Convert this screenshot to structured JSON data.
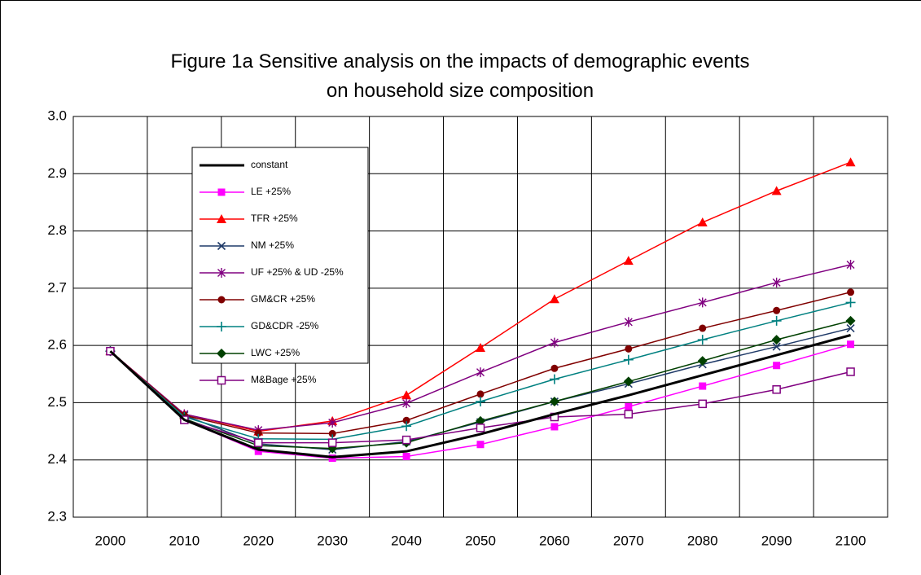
{
  "chart_data": {
    "type": "line",
    "title": "Figure 1a Sensitive analysis on the impacts of demographic events on household size composition",
    "categories": [
      "2000",
      "2010",
      "2020",
      "2030",
      "2040",
      "2050",
      "2060",
      "2070",
      "2080",
      "2090",
      "2100"
    ],
    "ylim": [
      2.3,
      3.0
    ],
    "yticks": [
      2.3,
      2.4,
      2.5,
      2.6,
      2.7,
      2.8,
      2.9,
      {
        "value": 3,
        "label": "3.0"
      }
    ],
    "grid": true,
    "legend": "upper-left",
    "series": [
      {
        "name": "constant",
        "color": "#000000",
        "marker": "none",
        "values": [
          2.59,
          2.47,
          2.418,
          2.405,
          2.415,
          2.445,
          2.48,
          2.513,
          2.548,
          2.583,
          2.618
        ]
      },
      {
        "name": "LE +25%",
        "color": "#ff00ff",
        "marker": "square",
        "values": [
          2.59,
          2.47,
          2.415,
          2.403,
          2.406,
          2.427,
          2.458,
          2.493,
          2.529,
          2.565,
          2.602
        ]
      },
      {
        "name": "TFR +25%",
        "color": "#ff0000",
        "marker": "triangle",
        "values": [
          2.59,
          2.48,
          2.45,
          2.468,
          2.513,
          2.596,
          2.681,
          2.748,
          2.815,
          2.87,
          2.92
        ]
      },
      {
        "name": "NM +25%",
        "color": "#1f3a68",
        "marker": "x",
        "values": [
          2.59,
          2.478,
          2.428,
          2.418,
          2.432,
          2.466,
          2.502,
          2.533,
          2.567,
          2.598,
          2.63
        ]
      },
      {
        "name": "UF +25% & UD -25%",
        "color": "#800080",
        "marker": "star",
        "values": [
          2.59,
          2.48,
          2.452,
          2.465,
          2.499,
          2.553,
          2.605,
          2.641,
          2.675,
          2.71,
          2.741
        ]
      },
      {
        "name": "GM&CR +25%",
        "color": "#800000",
        "marker": "circle",
        "values": [
          2.59,
          2.478,
          2.447,
          2.446,
          2.469,
          2.515,
          2.56,
          2.594,
          2.63,
          2.661,
          2.693
        ]
      },
      {
        "name": "GD&CDR -25%",
        "color": "#008080",
        "marker": "plus",
        "values": [
          2.59,
          2.475,
          2.437,
          2.436,
          2.459,
          2.502,
          2.541,
          2.575,
          2.61,
          2.643,
          2.675
        ]
      },
      {
        "name": "LWC +25%",
        "color": "#004000",
        "marker": "diamond",
        "values": [
          2.59,
          2.472,
          2.425,
          2.42,
          2.43,
          2.468,
          2.502,
          2.537,
          2.573,
          2.61,
          2.643
        ]
      },
      {
        "name": "M&Bage +25%",
        "color": "#800080",
        "marker": "hollow-square",
        "values": [
          2.59,
          2.47,
          2.43,
          2.43,
          2.435,
          2.456,
          2.475,
          2.48,
          2.498,
          2.523,
          2.554
        ]
      }
    ]
  }
}
